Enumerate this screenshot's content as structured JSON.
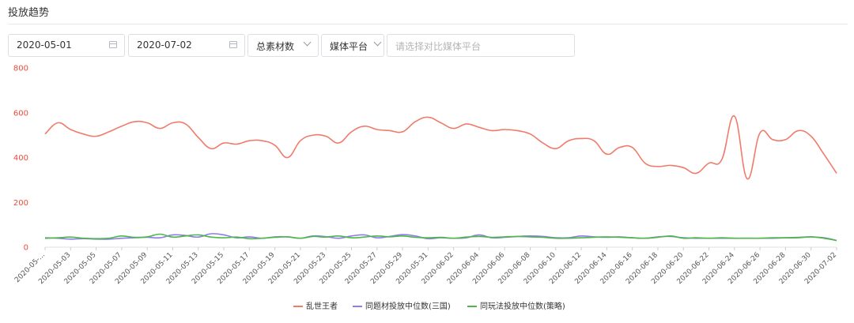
{
  "section": {
    "title": "投放趋势"
  },
  "filters": {
    "start_date": "2020-05-01",
    "end_date": "2020-07-02",
    "metric": "总素材数",
    "platform": "媒体平台",
    "compare_placeholder": "请选择对比媒体平台"
  },
  "chart_data": {
    "type": "line",
    "title": "",
    "xlabel": "",
    "ylabel": "",
    "ylim": [
      0,
      800
    ],
    "yticks": [
      0,
      200,
      400,
      600,
      800
    ],
    "grid": false,
    "legend_position": "bottom-center",
    "x": [
      "2020-05-01",
      "2020-05-02",
      "2020-05-03",
      "2020-05-04",
      "2020-05-05",
      "2020-05-06",
      "2020-05-07",
      "2020-05-08",
      "2020-05-09",
      "2020-05-10",
      "2020-05-11",
      "2020-05-12",
      "2020-05-13",
      "2020-05-14",
      "2020-05-15",
      "2020-05-16",
      "2020-05-17",
      "2020-05-18",
      "2020-05-19",
      "2020-05-20",
      "2020-05-21",
      "2020-05-22",
      "2020-05-23",
      "2020-05-24",
      "2020-05-25",
      "2020-05-26",
      "2020-05-27",
      "2020-05-28",
      "2020-05-29",
      "2020-05-30",
      "2020-05-31",
      "2020-06-01",
      "2020-06-02",
      "2020-06-03",
      "2020-06-04",
      "2020-06-05",
      "2020-06-06",
      "2020-06-07",
      "2020-06-08",
      "2020-06-09",
      "2020-06-10",
      "2020-06-11",
      "2020-06-12",
      "2020-06-13",
      "2020-06-14",
      "2020-06-15",
      "2020-06-16",
      "2020-06-17",
      "2020-06-18",
      "2020-06-19",
      "2020-06-20",
      "2020-06-21",
      "2020-06-22",
      "2020-06-23",
      "2020-06-24",
      "2020-06-25",
      "2020-06-26",
      "2020-06-27",
      "2020-06-28",
      "2020-06-29",
      "2020-06-30",
      "2020-07-01",
      "2020-07-02"
    ],
    "xtick_labels": [
      "2020-05-...",
      "2020-05-03",
      "2020-05-05",
      "2020-05-07",
      "2020-05-09",
      "2020-05-11",
      "2020-05-13",
      "2020-05-15",
      "2020-05-17",
      "2020-05-19",
      "2020-05-21",
      "2020-05-23",
      "2020-05-25",
      "2020-05-27",
      "2020-05-29",
      "2020-05-31",
      "2020-06-02",
      "2020-06-04",
      "2020-06-06",
      "2020-06-08",
      "2020-06-10",
      "2020-06-12",
      "2020-06-14",
      "2020-06-16",
      "2020-06-18",
      "2020-06-20",
      "2020-06-22",
      "2020-06-24",
      "2020-06-26",
      "2020-06-28",
      "2020-06-30",
      "2020-07-02"
    ],
    "series": [
      {
        "name": "乱世王者",
        "color": "#f07b6b",
        "values": [
          505,
          555,
          525,
          505,
          495,
          515,
          540,
          560,
          555,
          530,
          555,
          550,
          490,
          440,
          465,
          460,
          475,
          475,
          455,
          400,
          475,
          500,
          495,
          465,
          515,
          540,
          525,
          520,
          515,
          560,
          580,
          555,
          530,
          550,
          535,
          520,
          525,
          520,
          505,
          465,
          440,
          475,
          485,
          475,
          415,
          445,
          445,
          375,
          360,
          365,
          355,
          330,
          375,
          390,
          585,
          305,
          510,
          480,
          480,
          520,
          495,
          415,
          330
        ]
      },
      {
        "name": "同题材投放中位数(三国)",
        "color": "#8e7bec",
        "values": [
          42,
          40,
          36,
          38,
          36,
          36,
          40,
          42,
          44,
          42,
          55,
          52,
          45,
          60,
          55,
          42,
          46,
          40,
          46,
          46,
          40,
          50,
          47,
          40,
          50,
          55,
          42,
          48,
          56,
          50,
          38,
          42,
          40,
          42,
          55,
          42,
          44,
          48,
          50,
          48,
          42,
          42,
          50,
          46,
          44,
          46,
          42,
          40,
          46,
          48,
          42,
          40,
          40,
          40,
          40,
          40,
          40,
          40,
          42,
          44,
          46,
          42,
          30
        ]
      },
      {
        "name": "同玩法投放中位数(策略)",
        "color": "#4cb847",
        "values": [
          40,
          42,
          45,
          40,
          38,
          40,
          50,
          44,
          46,
          58,
          45,
          50,
          55,
          45,
          42,
          45,
          38,
          40,
          44,
          46,
          40,
          48,
          45,
          50,
          42,
          45,
          50,
          46,
          50,
          44,
          42,
          44,
          40,
          45,
          48,
          44,
          46,
          48,
          46,
          44,
          40,
          40,
          42,
          44,
          46,
          44,
          42,
          40,
          44,
          50,
          40,
          42,
          40,
          42,
          40,
          40,
          40,
          42,
          42,
          42,
          46,
          40,
          30
        ]
      }
    ]
  }
}
